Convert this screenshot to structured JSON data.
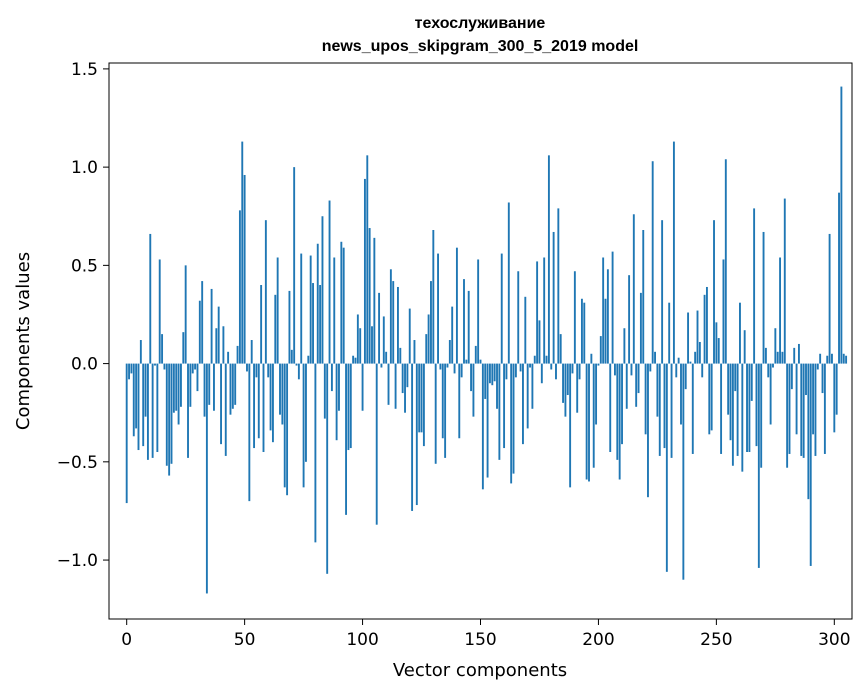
{
  "chart_data": {
    "type": "bar",
    "title": "техослуживание",
    "subtitle": "news_upos_skipgram_300_5_2019 model",
    "xlabel": "Vector components",
    "ylabel": "Components values",
    "xlim": [
      -7.5,
      307.5
    ],
    "ylim": [
      -1.3,
      1.53
    ],
    "xticks": [
      0,
      50,
      100,
      150,
      200,
      250,
      300
    ],
    "xtick_labels": [
      "0",
      "50",
      "100",
      "150",
      "200",
      "250",
      "300"
    ],
    "yticks": [
      -1.0,
      -0.5,
      0.0,
      0.5,
      1.0,
      1.5
    ],
    "ytick_labels": [
      "−1.0",
      "−0.5",
      "0.0",
      "0.5",
      "1.0",
      "1.5"
    ],
    "bar_color": "#1f77b4",
    "bar_width": 0.8,
    "grid": false,
    "values": [
      -0.71,
      -0.08,
      -0.05,
      -0.37,
      -0.33,
      -0.44,
      0.12,
      -0.42,
      -0.27,
      -0.49,
      0.66,
      -0.48,
      -0.01,
      -0.45,
      0.53,
      0.15,
      -0.03,
      -0.52,
      -0.57,
      -0.51,
      -0.25,
      -0.24,
      -0.31,
      -0.22,
      0.16,
      0.5,
      -0.48,
      -0.22,
      -0.05,
      -0.03,
      -0.14,
      0.32,
      0.42,
      -0.27,
      -1.17,
      -0.21,
      0.38,
      -0.24,
      0.18,
      0.29,
      -0.41,
      0.19,
      -0.47,
      0.06,
      -0.26,
      -0.23,
      -0.21,
      0.09,
      0.78,
      1.13,
      0.96,
      -0.04,
      -0.7,
      0.12,
      -0.43,
      -0.07,
      -0.38,
      0.4,
      -0.45,
      0.73,
      -0.07,
      -0.34,
      -0.4,
      0.35,
      0.54,
      -0.26,
      -0.31,
      -0.63,
      -0.67,
      0.37,
      0.07,
      1.0,
      -0.01,
      -0.08,
      0.56,
      -0.63,
      -0.5,
      0.04,
      0.55,
      0.41,
      -0.91,
      0.61,
      0.4,
      0.75,
      -0.28,
      -1.07,
      0.83,
      -0.14,
      0.54,
      -0.39,
      -0.24,
      0.62,
      0.59,
      -0.77,
      -0.44,
      -0.43,
      0.04,
      0.03,
      0.25,
      0.18,
      -0.24,
      0.94,
      1.06,
      0.69,
      0.19,
      0.64,
      -0.82,
      0.36,
      -0.02,
      0.24,
      0.06,
      -0.21,
      0.48,
      0.42,
      -0.23,
      0.39,
      0.08,
      -0.15,
      -0.25,
      -0.12,
      0.28,
      -0.75,
      0.12,
      -0.72,
      -0.35,
      -0.35,
      -0.42,
      0.15,
      0.25,
      0.42,
      0.68,
      -0.51,
      0.56,
      -0.03,
      -0.38,
      -0.48,
      -0.02,
      0.12,
      0.29,
      -0.05,
      0.59,
      -0.38,
      -0.07,
      0.43,
      0.02,
      0.37,
      -0.14,
      -0.27,
      0.09,
      0.53,
      0.02,
      -0.64,
      -0.18,
      -0.58,
      -0.1,
      -0.11,
      -0.09,
      -0.23,
      -0.49,
      0.56,
      -0.43,
      -0.08,
      0.82,
      -0.61,
      -0.56,
      -0.07,
      0.47,
      -0.04,
      -0.41,
      0.34,
      -0.33,
      -0.02,
      -0.23,
      0.04,
      0.52,
      0.22,
      -0.1,
      0.54,
      0.04,
      1.06,
      -0.03,
      0.67,
      -0.08,
      0.79,
      0.15,
      -0.2,
      -0.27,
      -0.16,
      -0.63,
      -0.05,
      0.47,
      -0.25,
      -0.08,
      0.33,
      0.31,
      -0.59,
      -0.6,
      0.05,
      -0.53,
      -0.31,
      -0.01,
      0.14,
      0.54,
      0.33,
      0.48,
      -0.45,
      0.57,
      -0.06,
      -0.49,
      -0.59,
      -0.41,
      0.18,
      -0.23,
      0.45,
      -0.06,
      0.76,
      -0.22,
      -0.15,
      0.36,
      0.68,
      -0.36,
      -0.68,
      -0.04,
      1.03,
      0.06,
      -0.27,
      -0.47,
      0.73,
      -0.43,
      -1.06,
      0.31,
      -0.48,
      1.13,
      -0.07,
      0.03,
      -0.31,
      -1.1,
      -0.13,
      0.26,
      0.01,
      -0.46,
      0.06,
      0.27,
      0.11,
      -0.07,
      0.35,
      0.39,
      -0.36,
      -0.34,
      0.73,
      0.21,
      0.13,
      -0.46,
      0.53,
      1.04,
      -0.26,
      -0.39,
      -0.52,
      -0.14,
      -0.47,
      0.31,
      -0.55,
      0.17,
      -0.45,
      -0.45,
      -0.19,
      0.79,
      -0.42,
      -1.04,
      -0.53,
      0.67,
      0.08,
      -0.07,
      -0.31,
      -0.02,
      0.18,
      0.06,
      0.54,
      0.06,
      0.84,
      -0.53,
      -0.46,
      -0.13,
      0.08,
      -0.36,
      0.1,
      -0.47,
      -0.48,
      -0.16,
      -0.69,
      -1.03,
      -0.36,
      -0.47,
      -0.03,
      0.05,
      -0.15,
      -0.46,
      0.04,
      0.66,
      0.05,
      -0.35,
      -0.26,
      0.87,
      1.41,
      0.05,
      0.04
    ]
  }
}
